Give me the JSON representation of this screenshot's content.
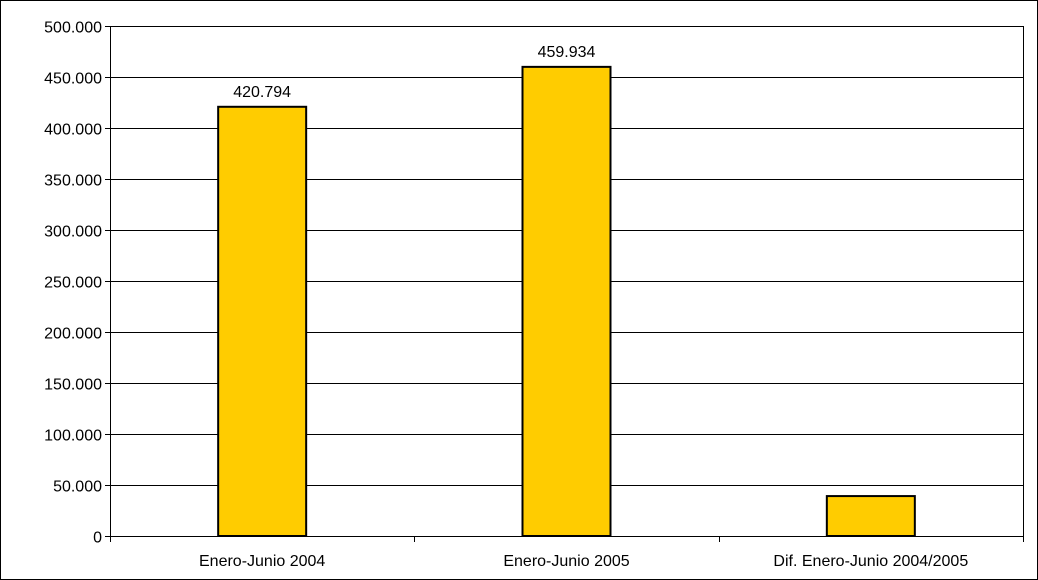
{
  "chart_data": {
    "type": "bar",
    "title": "",
    "xlabel": "",
    "ylabel": "",
    "categories": [
      "Enero-Junio 2004",
      "Enero-Junio 2005",
      "Dif. Enero-Junio 2004/2005"
    ],
    "values": [
      420794,
      459934,
      39140
    ],
    "data_labels": [
      "420.794",
      "459.934",
      null
    ],
    "ylim": [
      0,
      500000
    ],
    "yticks": [
      0,
      50000,
      100000,
      150000,
      200000,
      250000,
      300000,
      350000,
      400000,
      450000,
      500000
    ],
    "ytick_labels": [
      "0",
      "50.000",
      "100.000",
      "150.000",
      "200.000",
      "250.000",
      "300.000",
      "350.000",
      "400.000",
      "450.000",
      "500.000"
    ],
    "grid": true,
    "legend": "none",
    "colors": {
      "bar_fill": "#FFCC00",
      "bar_stroke": "#000000",
      "grid": "#000000",
      "background": "#FFFFFF"
    }
  }
}
